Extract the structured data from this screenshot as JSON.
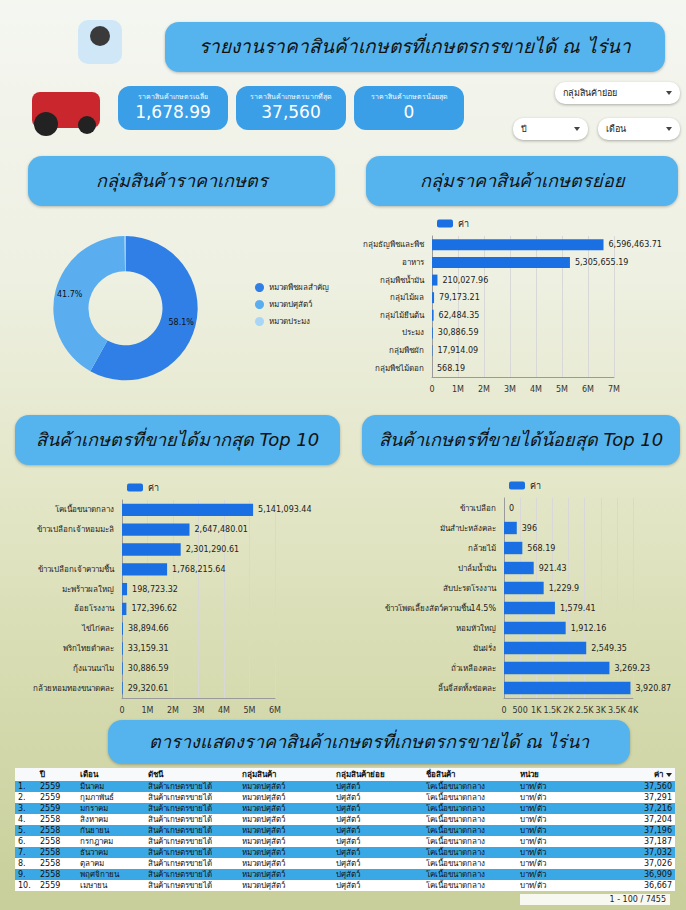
{
  "header": {
    "title": "รายงานราคาสินค้าเกษตรที่เกษตรกรขายได้ ณ ไร่นา"
  },
  "kpis": [
    {
      "label": "ราคาสินค้าเกษตรเฉลี่ย",
      "value": "1,678.99"
    },
    {
      "label": "ราคาสินค้าเกษตรมากที่สุด",
      "value": "37,560"
    },
    {
      "label": "ราคาสินค้าเกษตรน้อยสุด",
      "value": "0"
    }
  ],
  "filters": [
    "กลุ่มสินค้าย่อย",
    "ปี",
    "เดือน"
  ],
  "chart_data": [
    {
      "type": "pie",
      "title": "กลุ่มสินค้าราคาเกษตร",
      "categories": [
        "หมวดพืชผลสำคัญ",
        "หมวดปศุสัตว์",
        "หมวดประมง"
      ],
      "values": [
        58.1,
        41.7,
        0.2
      ],
      "value_labels": [
        "58.1%",
        "41.7%",
        null
      ],
      "colors": [
        "#2f7fe6",
        "#5aaef0",
        "#a9d6f7"
      ],
      "data_labels": true,
      "legend": "right"
    },
    {
      "type": "bar",
      "title": "กลุ่มราคาสินค้าเกษตรย่อย",
      "orientation": "horizontal",
      "categories": [
        "กลุ่มธัญพืชและพืช",
        "อาหาร",
        "กลุ่มพืชน้ำมัน",
        "กลุ่มไม้ผล",
        "กลุ่มไม้ยืนต้น",
        "ประมง",
        "กลุ่มพืชผัก",
        "กลุ่มพืชไม้ดอก"
      ],
      "series": [
        {
          "name": "ค่า",
          "color": "#1a6fe3",
          "values": [
            6596463.71,
            5305655.19,
            210027.96,
            79173.21,
            62484.35,
            30886.59,
            17914.09,
            568.19
          ],
          "value_labels": [
            "6,596,463.71",
            "5,305,655.19",
            "210,027.96",
            "79,173.21",
            "62,484.35",
            "30,886.59",
            "17,914.09",
            "568.19"
          ]
        }
      ],
      "xlim": [
        0,
        7000000
      ],
      "xticks": [
        0,
        {
          "value": 1000000,
          "label": "1M"
        },
        {
          "value": 2000000,
          "label": "2M"
        },
        {
          "value": 3000000,
          "label": "3M"
        },
        {
          "value": 4000000,
          "label": "4M"
        },
        {
          "value": 5000000,
          "label": "5M"
        },
        {
          "value": 6000000,
          "label": "6M"
        },
        {
          "value": 7000000,
          "label": "7M"
        }
      ],
      "grid": true,
      "data_labels": true,
      "legend": "top-left"
    },
    {
      "type": "bar",
      "title": "สินค้าเกษตรที่ขายได้มากสุด Top 10",
      "orientation": "horizontal",
      "categories": [
        "โคเนื้อขนาดกลาง",
        "ข้าวเปลือกเจ้าหอมมะลิ",
        null,
        "ข้าวเปลือกเจ้าความชื้น",
        "มะพร้าวผลใหญ่",
        "อ้อยโรงงาน",
        "ไข่ไก่คละ",
        "พริกไทยดำคละ",
        "กุ้งแวนนาไม",
        "กล้วยหอมทองขนาดคละ"
      ],
      "series": [
        {
          "name": "ค่า",
          "color": "#1a6fe3",
          "values": [
            5141093.44,
            2647480.01,
            2301290.61,
            1768215.64,
            198723.32,
            172396.62,
            38894.66,
            33159.31,
            30886.59,
            29320.61
          ],
          "value_labels": [
            "5,141,093.44",
            "2,647,480.01",
            "2,301,290.61",
            "1,768,215.64",
            "198,723.32",
            "172,396.62",
            "38,894.66",
            "33,159.31",
            "30,886.59",
            "29,320.61"
          ]
        }
      ],
      "xlim": [
        0,
        6000000
      ],
      "xticks": [
        0,
        {
          "value": 1000000,
          "label": "1M"
        },
        {
          "value": 2000000,
          "label": "2M"
        },
        {
          "value": 3000000,
          "label": "3M"
        },
        {
          "value": 4000000,
          "label": "4M"
        },
        {
          "value": 5000000,
          "label": "5M"
        },
        {
          "value": 6000000,
          "label": "6M"
        }
      ],
      "grid": true,
      "data_labels": true,
      "legend": "top-left"
    },
    {
      "type": "bar",
      "title": "สินค้าเกษตรที่ขายได้น้อยสุด Top 10",
      "orientation": "horizontal",
      "categories": [
        "ข้าวเปลือก",
        "มันสำปะหลังคละ",
        "กล้วยไม้",
        "ปาล์มน้ำมัน",
        "สับปะรดโรงงาน",
        "ข้าวโพดเลี้ยงสัตว์ความชื้น14.5%",
        "หอมหัวใหญ่",
        "มันฝรั่ง",
        "ถั่วเหลืองคละ",
        "ลิ้นจี่สดทั้งช่อคละ"
      ],
      "series": [
        {
          "name": "ค่า",
          "color": "#1a6fe3",
          "values": [
            0,
            396,
            568.19,
            921.43,
            1229.9,
            1579.41,
            1912.16,
            2549.35,
            3269.23,
            3920.87
          ],
          "value_labels": [
            "0",
            "396",
            "568.19",
            "921.43",
            "1,229.9",
            "1,579.41",
            "1,912.16",
            "2,549.35",
            "3,269.23",
            "3,920.87"
          ]
        }
      ],
      "xlim": [
        0,
        4000
      ],
      "xticks": [
        0,
        500,
        {
          "value": 1000,
          "label": "1K"
        },
        {
          "value": 1500,
          "label": "1.5K"
        },
        {
          "value": 2000,
          "label": "2K"
        },
        {
          "value": 2500,
          "label": "2.5K"
        },
        {
          "value": 3000,
          "label": "3K"
        },
        {
          "value": 3500,
          "label": "3.5K"
        },
        {
          "value": 4000,
          "label": "4K"
        }
      ],
      "grid": true,
      "data_labels": true,
      "legend": "top-left"
    }
  ],
  "table": {
    "title": "ตารางแสดงราคาสินค้าเกษตรที่เกษตรกรขายได้ ณ ไร่นา",
    "columns": [
      "ปี",
      "เดือน",
      "ดัชนี",
      "กลุ่มสินค้า",
      "กลุ่มสินค้าย่อย",
      "ชื่อสินค้า",
      "หน่วย",
      "ค่า"
    ],
    "rows": [
      [
        "1.",
        "2559",
        "มีนาคม",
        "สินค้าเกษตรขายได้",
        "หมวดปศุสัตว์",
        "ปศุสัตว์",
        "โคเนื้อขนาดกลาง",
        "บาท/ตัว",
        "37,560"
      ],
      [
        "2.",
        "2559",
        "กุมภาพันธ์",
        "สินค้าเกษตรขายได้",
        "หมวดปศุสัตว์",
        "ปศุสัตว์",
        "โคเนื้อขนาดกลาง",
        "บาท/ตัว",
        "37,291"
      ],
      [
        "3.",
        "2559",
        "มกราคม",
        "สินค้าเกษตรขายได้",
        "หมวดปศุสัตว์",
        "ปศุสัตว์",
        "โคเนื้อขนาดกลาง",
        "บาท/ตัว",
        "37,216"
      ],
      [
        "4.",
        "2558",
        "สิงหาคม",
        "สินค้าเกษตรขายได้",
        "หมวดปศุสัตว์",
        "ปศุสัตว์",
        "โคเนื้อขนาดกลาง",
        "บาท/ตัว",
        "37,204"
      ],
      [
        "5.",
        "2558",
        "กันยายน",
        "สินค้าเกษตรขายได้",
        "หมวดปศุสัตว์",
        "ปศุสัตว์",
        "โคเนื้อขนาดกลาง",
        "บาท/ตัว",
        "37,196"
      ],
      [
        "6.",
        "2558",
        "กรกฎาคม",
        "สินค้าเกษตรขายได้",
        "หมวดปศุสัตว์",
        "ปศุสัตว์",
        "โคเนื้อขนาดกลาง",
        "บาท/ตัว",
        "37,187"
      ],
      [
        "7.",
        "2558",
        "ธันวาคม",
        "สินค้าเกษตรขายได้",
        "หมวดปศุสัตว์",
        "ปศุสัตว์",
        "โคเนื้อขนาดกลาง",
        "บาท/ตัว",
        "37,032"
      ],
      [
        "8.",
        "2558",
        "ตุลาคม",
        "สินค้าเกษตรขายได้",
        "หมวดปศุสัตว์",
        "ปศุสัตว์",
        "โคเนื้อขนาดกลาง",
        "บาท/ตัว",
        "37,026"
      ],
      [
        "9.",
        "2558",
        "พฤศจิกายน",
        "สินค้าเกษตรขายได้",
        "หมวดปศุสัตว์",
        "ปศุสัตว์",
        "โคเนื้อขนาดกลาง",
        "บาท/ตัว",
        "36,909"
      ],
      [
        "10.",
        "2559",
        "เมษายน",
        "สินค้าเกษตรขายได้",
        "หมวดปศุสัตว์",
        "ปศุสัตว์",
        "โคเนื้อขนาดกลาง",
        "บาท/ตัว",
        "36,667"
      ]
    ],
    "pagination": "1 - 100 / 7455"
  }
}
